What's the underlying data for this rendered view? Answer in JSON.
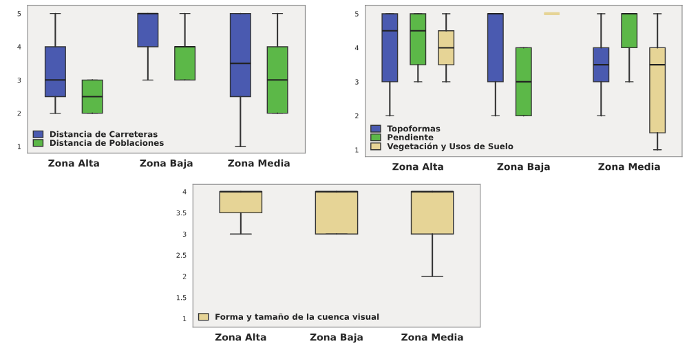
{
  "chart_data": [
    {
      "type": "box",
      "categories": [
        "Zona Alta",
        "Zona Baja",
        "Zona Media"
      ],
      "ylim": [
        0.8,
        5.25
      ],
      "yticks": [
        1,
        2,
        3,
        4,
        5
      ],
      "grid": false,
      "legend": "bottom left",
      "series": [
        {
          "name": "Distancia de Carreteras",
          "color": "#4a5ab0",
          "boxes": [
            {
              "low": 2,
              "q1": 2.5,
              "median": 3,
              "q3": 4,
              "high": 5
            },
            {
              "low": 3,
              "q1": 4,
              "median": 5,
              "q3": 5,
              "high": 5
            },
            {
              "low": 1,
              "q1": 2.5,
              "median": 3.5,
              "q3": 5,
              "high": 5
            }
          ]
        },
        {
          "name": "Distancia de Poblaciones",
          "color": "#5cb848",
          "boxes": [
            {
              "low": 2,
              "q1": 2,
              "median": 2.5,
              "q3": 3,
              "high": 3
            },
            {
              "low": 3,
              "q1": 3,
              "median": 4,
              "q3": 4,
              "high": 5
            },
            {
              "low": 2,
              "q1": 2,
              "median": 3,
              "q3": 4,
              "high": 5
            }
          ]
        }
      ]
    },
    {
      "type": "box",
      "categories": [
        "Zona Alta",
        "Zona Baja",
        "Zona Media"
      ],
      "ylim": [
        0.8,
        5.25
      ],
      "yticks": [
        1,
        2,
        3,
        4,
        5
      ],
      "grid": false,
      "legend": "bottom left",
      "series": [
        {
          "name": "Topoformas",
          "color": "#4a5ab0",
          "boxes": [
            {
              "low": 2,
              "q1": 3,
              "median": 4.5,
              "q3": 5,
              "high": 5
            },
            {
              "low": 2,
              "q1": 3,
              "median": 5,
              "q3": 5,
              "high": 5
            },
            {
              "low": 2,
              "q1": 3,
              "median": 3.5,
              "q3": 4,
              "high": 5
            }
          ]
        },
        {
          "name": "Pendiente",
          "color": "#5cb848",
          "boxes": [
            {
              "low": 3,
              "q1": 3.5,
              "median": 4.5,
              "q3": 5,
              "high": 5
            },
            {
              "low": 2,
              "q1": 2,
              "median": 3,
              "q3": 4,
              "high": 4
            },
            {
              "low": 3,
              "q1": 4,
              "median": 5,
              "q3": 5,
              "high": 5
            }
          ]
        },
        {
          "name": "Vegetación y Usos de Suelo",
          "color": "#e6d496",
          "boxes": [
            {
              "low": 3,
              "q1": 3.5,
              "median": 4,
              "q3": 4.5,
              "high": 5
            },
            {
              "low": 5,
              "q1": 5,
              "median": 5,
              "q3": 5,
              "high": 5
            },
            {
              "low": 1,
              "q1": 1.5,
              "median": 3.5,
              "q3": 4,
              "high": 5
            }
          ]
        }
      ]
    },
    {
      "type": "box",
      "categories": [
        "Zona Alta",
        "Zona Baja",
        "Zona Media"
      ],
      "ylim": [
        0.8,
        4.17
      ],
      "yticks": [
        1,
        1.5,
        2,
        2.5,
        3,
        3.5,
        4
      ],
      "grid": false,
      "legend": "bottom left",
      "series": [
        {
          "name": "Forma y tamaño de la cuenca visual",
          "color": "#e6d496",
          "boxes": [
            {
              "low": 3,
              "q1": 3.5,
              "median": 4,
              "q3": 4,
              "high": 4
            },
            {
              "low": 3,
              "q1": 3,
              "median": 4,
              "q3": 4,
              "high": 4
            },
            {
              "low": 2,
              "q1": 3,
              "median": 4,
              "q3": 4,
              "high": 4
            }
          ]
        }
      ]
    }
  ]
}
